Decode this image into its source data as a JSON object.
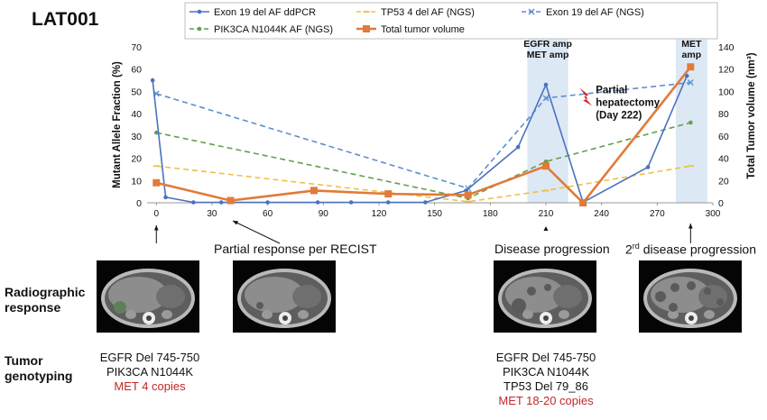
{
  "figure_label": "LAT001",
  "chart_data": {
    "type": "line",
    "x_ticks": [
      0,
      30,
      60,
      90,
      120,
      150,
      180,
      210,
      240,
      270,
      300
    ],
    "xlim": [
      -5,
      300
    ],
    "y_left": {
      "label": "Mutant Allele Fraction (%)",
      "lim": [
        0,
        70
      ],
      "ticks": [
        0,
        10,
        20,
        30,
        40,
        50,
        60,
        70
      ]
    },
    "y_right": {
      "label": "Total Tumor volume (nm³)",
      "lim": [
        0,
        140
      ],
      "ticks": [
        0,
        20,
        40,
        60,
        80,
        100,
        120,
        140
      ]
    },
    "shaded_regions": [
      {
        "x0": 200,
        "x1": 222,
        "label_lines": [
          "EGFR amp",
          "MET amp"
        ]
      },
      {
        "x0": 280,
        "x1": 297,
        "label_lines": [
          "MET",
          "amp"
        ]
      }
    ],
    "annotation": {
      "x": 232,
      "y": 46,
      "lines": [
        "Partial",
        "hepatectomy",
        "(Day 222)"
      ]
    },
    "legend_placement": "top",
    "series": [
      {
        "name": "Exon 19 del AF ddPCR",
        "axis": "left",
        "color": "#4a72c0",
        "style": "solid",
        "marker": "circle",
        "x": [
          -2,
          5,
          20,
          35,
          60,
          87,
          105,
          125,
          145,
          167,
          195,
          210,
          230,
          265,
          286
        ],
        "y": [
          55,
          2.5,
          0.2,
          0.2,
          0.2,
          0.2,
          0.2,
          0.2,
          0.2,
          5.5,
          25,
          53,
          0.2,
          16,
          57
        ]
      },
      {
        "name": "TP53 4 del AF (NGS)",
        "axis": "left",
        "color": "#f0c043",
        "style": "dashed",
        "marker": "dash",
        "x": [
          0,
          168,
          210,
          288
        ],
        "y": [
          16.5,
          0.5,
          5.5,
          16.5
        ]
      },
      {
        "name": "Exon 19 del AF (NGS)",
        "axis": "left",
        "color": "#5b8fd0",
        "style": "dashed",
        "marker": "x",
        "x": [
          0,
          168,
          210,
          288
        ],
        "y": [
          49,
          6.5,
          47,
          54
        ]
      },
      {
        "name": "PIK3CA N1044K AF (NGS)",
        "axis": "left",
        "color": "#62a04e",
        "style": "dashed",
        "marker": "circle",
        "x": [
          0,
          168,
          210,
          288
        ],
        "y": [
          31.5,
          2,
          18.5,
          36
        ]
      },
      {
        "name": "Total tumor volume",
        "axis": "right",
        "color": "#e07b39",
        "style": "solid",
        "marker": "square",
        "x": [
          0,
          40,
          85,
          125,
          168,
          210,
          230,
          288
        ],
        "y": [
          18,
          2,
          11,
          8,
          7,
          33,
          0,
          122
        ]
      }
    ]
  },
  "timeline": {
    "labels": [
      {
        "text": "Partial response per RECIST"
      },
      {
        "text": "Disease progression"
      },
      {
        "pre": "2",
        "sup": "rd",
        "post": " disease progression"
      }
    ]
  },
  "rows": {
    "radiographic": "Radiographic response",
    "genotyping": "Tumor genotyping"
  },
  "genotypes": [
    {
      "lines": [
        "EGFR Del 745-750",
        "PIK3CA N1044K"
      ],
      "red_lines": [
        "MET 4 copies"
      ]
    },
    {
      "lines": [
        "EGFR Del 745-750",
        "PIK3CA N1044K",
        "TP53 Del 79_86"
      ],
      "red_lines": [
        "MET 18-20 copies"
      ]
    }
  ]
}
